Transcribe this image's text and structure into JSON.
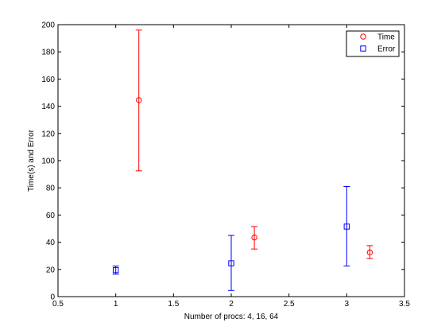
{
  "chart_data": {
    "type": "scatter",
    "title": "",
    "xlabel": "Number of procs: 4, 16, 64",
    "ylabel": "Time(s) and Error",
    "xlim": [
      0.5,
      3.5
    ],
    "ylim": [
      0,
      200
    ],
    "xticks": [
      "0.5",
      "1",
      "1.5",
      "2",
      "2.5",
      "3",
      "3.5"
    ],
    "yticks": [
      "0",
      "20",
      "40",
      "60",
      "80",
      "100",
      "120",
      "140",
      "160",
      "180",
      "200"
    ],
    "grid": false,
    "legend_position": "top-right",
    "series": [
      {
        "name": "Time",
        "marker": "circle",
        "color": "#ff0000",
        "points": [
          {
            "x": 1.2,
            "y": 144.5,
            "low": 92.5,
            "high": 196
          },
          {
            "x": 2.2,
            "y": 43.5,
            "low": 35,
            "high": 51.5
          },
          {
            "x": 3.2,
            "y": 32.5,
            "low": 28,
            "high": 37.5
          }
        ]
      },
      {
        "name": "Error",
        "marker": "square",
        "color": "#0000ff",
        "points": [
          {
            "x": 1.0,
            "y": 19.5,
            "low": 16.5,
            "high": 22.5
          },
          {
            "x": 2.0,
            "y": 24.5,
            "low": 4.5,
            "high": 45
          },
          {
            "x": 3.0,
            "y": 51.5,
            "low": 22.5,
            "high": 81
          }
        ]
      }
    ]
  }
}
